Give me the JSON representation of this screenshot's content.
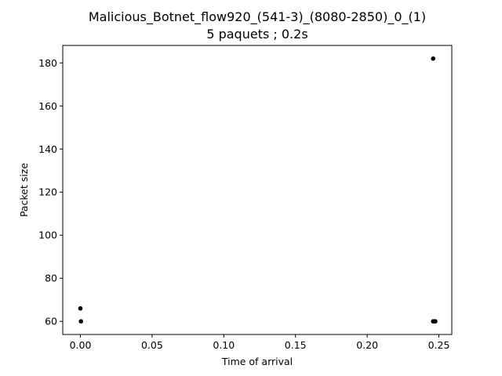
{
  "chart_data": {
    "type": "scatter",
    "title": "Malicious_Botnet_flow920_(541-3)_(8080-2850)_0_(1)",
    "subtitle": "5 paquets ; 0.2s",
    "xlabel": "Time of arrival",
    "ylabel": "Packet size",
    "xlim": [
      -0.0123,
      0.259
    ],
    "ylim": [
      53.9,
      188.1
    ],
    "xticks": [
      0.0,
      0.05,
      0.1,
      0.15,
      0.2,
      0.25
    ],
    "xtick_labels": [
      "0.00",
      "0.05",
      "0.10",
      "0.15",
      "0.20",
      "0.25"
    ],
    "yticks": [
      60,
      80,
      100,
      120,
      140,
      160,
      180
    ],
    "ytick_labels": [
      "60",
      "80",
      "100",
      "120",
      "140",
      "160",
      "180"
    ],
    "grid": false,
    "marker_color": "#000000",
    "points": [
      {
        "x": 0.0,
        "y": 66
      },
      {
        "x": 0.0004,
        "y": 60
      },
      {
        "x": 0.246,
        "y": 182
      },
      {
        "x": 0.246,
        "y": 60
      },
      {
        "x": 0.2475,
        "y": 60
      }
    ]
  }
}
